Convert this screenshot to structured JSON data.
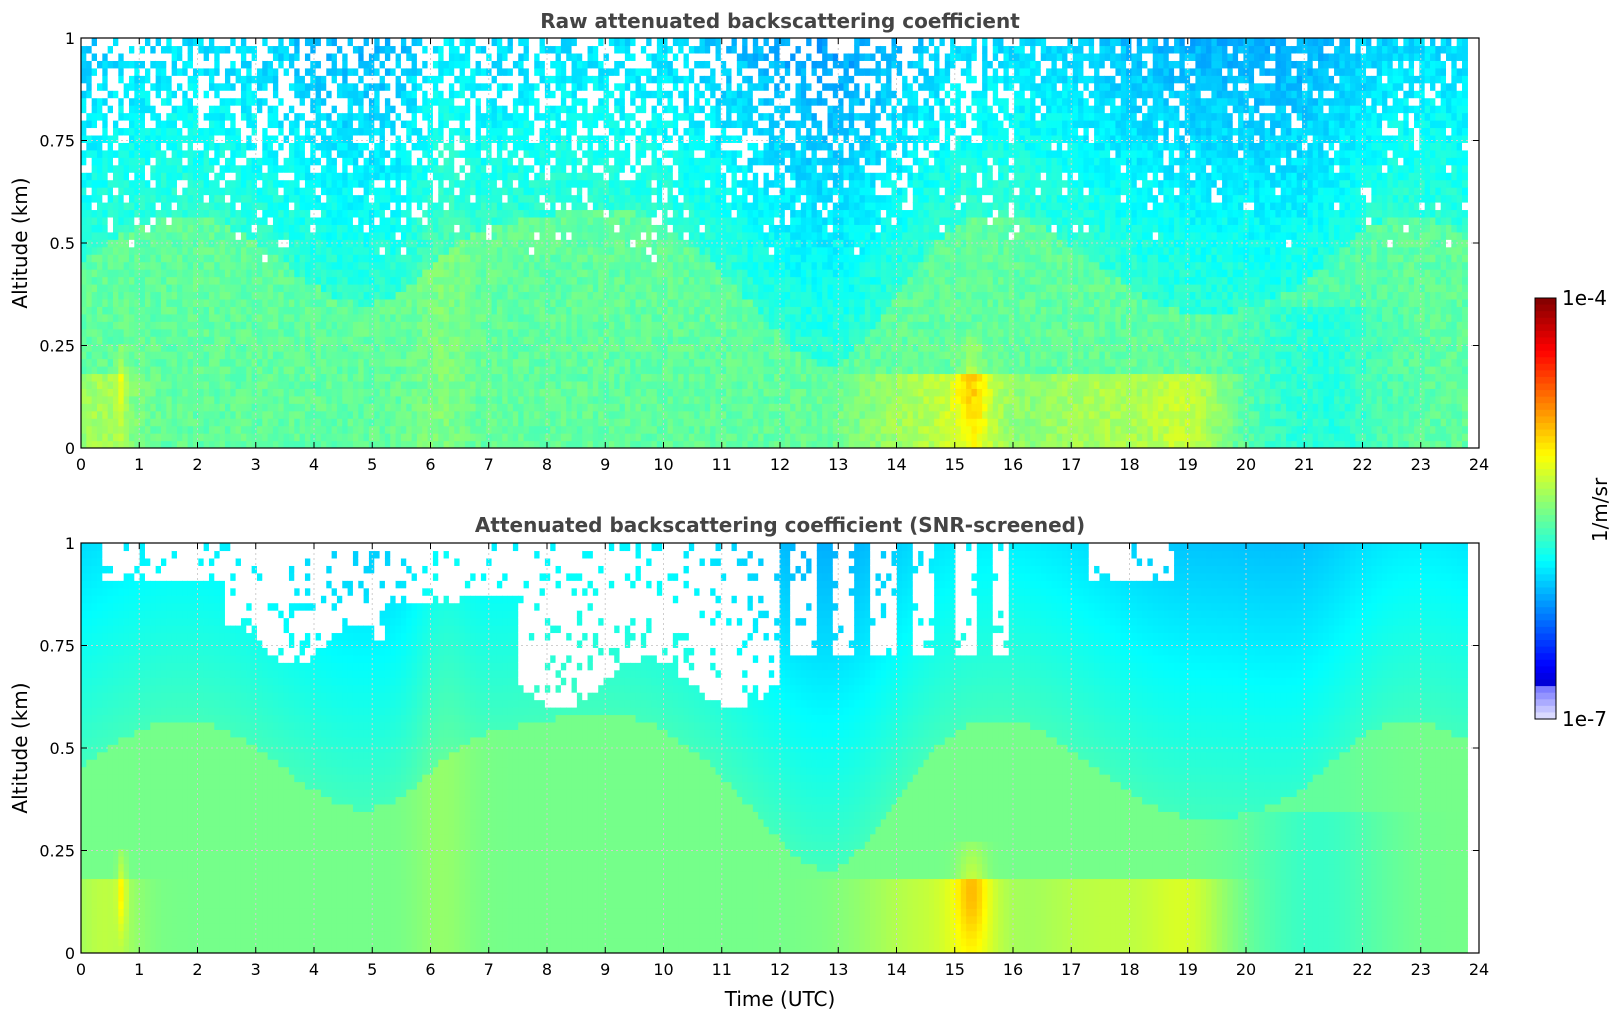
{
  "chart_data": [
    {
      "type": "heatmap",
      "title": "Raw attenuated backscattering coefficient",
      "xlabel": "",
      "ylabel": "Altitude (km)",
      "xlim": [
        0,
        24
      ],
      "ylim": [
        0,
        1
      ],
      "x_ticks": [
        "0",
        "1",
        "2",
        "3",
        "4",
        "5",
        "6",
        "7",
        "8",
        "9",
        "10",
        "11",
        "12",
        "13",
        "14",
        "15",
        "16",
        "17",
        "18",
        "19",
        "20",
        "21",
        "22",
        "23",
        "24"
      ],
      "y_ticks": [
        "0",
        "0.25",
        "0.5",
        "0.75",
        "1"
      ],
      "x_ticks_values": [
        0,
        1,
        2,
        3,
        4,
        5,
        6,
        7,
        8,
        9,
        10,
        11,
        12,
        13,
        14,
        15,
        16,
        17,
        18,
        19,
        20,
        21,
        22,
        23,
        24
      ],
      "y_ticks_values": [
        0,
        0.25,
        0.5,
        0.75,
        1
      ],
      "data_extent_hours": [
        0,
        23.8
      ],
      "grid": true,
      "screened": false,
      "colorscale": "jet",
      "value_range_log10": [
        -7,
        -4
      ]
    },
    {
      "type": "heatmap",
      "title": "Attenuated backscattering coefficient (SNR-screened)",
      "xlabel": "Time (UTC)",
      "ylabel": "Altitude (km)",
      "xlim": [
        0,
        24
      ],
      "ylim": [
        0,
        1
      ],
      "x_ticks": [
        "0",
        "1",
        "2",
        "3",
        "4",
        "5",
        "6",
        "7",
        "8",
        "9",
        "10",
        "11",
        "12",
        "13",
        "14",
        "15",
        "16",
        "17",
        "18",
        "19",
        "20",
        "21",
        "22",
        "23",
        "24"
      ],
      "y_ticks": [
        "0",
        "0.25",
        "0.5",
        "0.75",
        "1"
      ],
      "x_ticks_values": [
        0,
        1,
        2,
        3,
        4,
        5,
        6,
        7,
        8,
        9,
        10,
        11,
        12,
        13,
        14,
        15,
        16,
        17,
        18,
        19,
        20,
        21,
        22,
        23,
        24
      ],
      "y_ticks_values": [
        0,
        0.25,
        0.5,
        0.75,
        1
      ],
      "data_extent_hours": [
        0,
        23.8
      ],
      "grid": true,
      "screened": true,
      "colorscale": "jet",
      "value_range_log10": [
        -7,
        -4
      ]
    }
  ],
  "colorbar": {
    "label": "1/m/sr",
    "top_label": "1e-4",
    "bottom_label": "1e-7",
    "min_log10": -7,
    "max_log10": -4
  },
  "colors": {
    "title": "#444444",
    "grid": "#cfcfcf",
    "axis": "#000000"
  }
}
